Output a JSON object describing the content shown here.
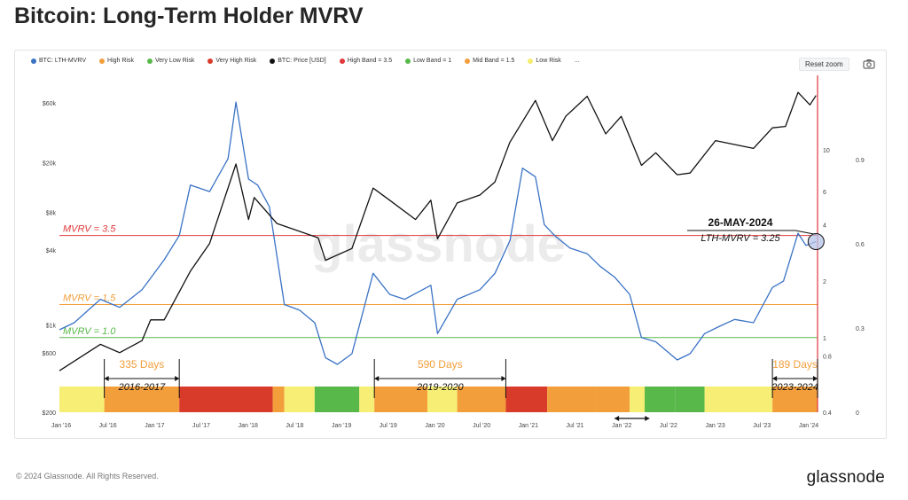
{
  "title": "Bitcoin: Long-Term Holder MVRV",
  "legend": [
    {
      "label": "BTC: LTH-MVRV",
      "color": "#3a72c5"
    },
    {
      "label": "High Risk",
      "color": "#f29e3b"
    },
    {
      "label": "Very Low Risk",
      "color": "#58b84a"
    },
    {
      "label": "Very High Risk",
      "color": "#d93b2b"
    },
    {
      "label": "BTC: Price [USD]",
      "color": "#111111"
    },
    {
      "label": "High Band = 3.5",
      "color": "#e0383b"
    },
    {
      "label": "Low Band = 1",
      "color": "#58b84a"
    },
    {
      "label": "Mid Band = 1.5",
      "color": "#f29e3b"
    },
    {
      "label": "Low Risk",
      "color": "#f5ec6e"
    }
  ],
  "legend_more": "...",
  "reset_zoom_label": "Reset zoom",
  "watermark": "glassnode",
  "copyright": "© 2024 Glassnode. All Rights Reserved.",
  "brand": "glassnode",
  "chart_data": {
    "type": "line",
    "x_ticks": [
      "Jan '16",
      "Jul '16",
      "Jan '17",
      "Jul '17",
      "Jan '18",
      "Jul '18",
      "Jan '19",
      "Jul '19",
      "Jan '20",
      "Jul '20",
      "Jan '21",
      "Jul '21",
      "Jan '22",
      "Jul '22",
      "Jan '23",
      "Jul '23",
      "Jan '24"
    ],
    "x_range": [
      "2016-01-01",
      "2024-06-01"
    ],
    "price_axis": {
      "scale": "log",
      "range": [
        200,
        100000
      ],
      "ticks": [
        "$200",
        "$600",
        "$1k",
        "$4k",
        "$8k",
        "$20k",
        "$60k"
      ],
      "tick_values": [
        200,
        600,
        1000,
        4000,
        8000,
        20000,
        60000
      ]
    },
    "mvrv_axis": {
      "scale": "log",
      "range": [
        0.4,
        25
      ],
      "ticks": [
        "0.4",
        "0.8",
        "1",
        "2",
        "4",
        "6",
        "10"
      ],
      "tick_values": [
        0.4,
        0.8,
        1,
        2,
        4,
        6,
        10
      ]
    },
    "right_axis": {
      "ticks": [
        "0",
        "0.3",
        "0.6",
        "0.9"
      ],
      "tick_values": [
        0,
        0.3,
        0.6,
        0.9
      ],
      "range": [
        0,
        1.2
      ]
    },
    "bands": [
      {
        "label": "MVRV = 3.5",
        "value": 3.5,
        "color": "#e0383b"
      },
      {
        "label": "MVRV = 1.5",
        "value": 1.5,
        "color": "#f29e3b"
      },
      {
        "label": "MVRV = 1.0",
        "value": 1.0,
        "color": "#58b84a"
      }
    ],
    "series": [
      {
        "name": "BTC: LTH-MVRV",
        "color": "#3a72c5",
        "axis": "mvrv",
        "points": [
          [
            "2016-01-01",
            1.1
          ],
          [
            "2016-03-01",
            1.2
          ],
          [
            "2016-06-15",
            1.6
          ],
          [
            "2016-09-01",
            1.45
          ],
          [
            "2016-12-01",
            1.8
          ],
          [
            "2017-03-01",
            2.6
          ],
          [
            "2017-05-01",
            3.5
          ],
          [
            "2017-06-15",
            6.5
          ],
          [
            "2017-09-01",
            6.0
          ],
          [
            "2017-11-15",
            9.0
          ],
          [
            "2017-12-17",
            18.0
          ],
          [
            "2018-02-06",
            7.0
          ],
          [
            "2018-03-15",
            6.5
          ],
          [
            "2018-05-01",
            5.0
          ],
          [
            "2018-07-01",
            1.5
          ],
          [
            "2018-09-01",
            1.4
          ],
          [
            "2018-11-01",
            1.2
          ],
          [
            "2018-12-15",
            0.78
          ],
          [
            "2019-02-01",
            0.72
          ],
          [
            "2019-04-01",
            0.82
          ],
          [
            "2019-06-26",
            2.2
          ],
          [
            "2019-09-01",
            1.7
          ],
          [
            "2019-11-01",
            1.6
          ],
          [
            "2020-02-15",
            1.9
          ],
          [
            "2020-03-13",
            1.05
          ],
          [
            "2020-06-01",
            1.6
          ],
          [
            "2020-09-01",
            1.8
          ],
          [
            "2020-11-01",
            2.2
          ],
          [
            "2021-01-01",
            3.3
          ],
          [
            "2021-02-21",
            8.0
          ],
          [
            "2021-04-14",
            7.2
          ],
          [
            "2021-05-20",
            4.0
          ],
          [
            "2021-07-01",
            3.5
          ],
          [
            "2021-09-01",
            3.0
          ],
          [
            "2021-11-10",
            2.8
          ],
          [
            "2022-01-01",
            2.4
          ],
          [
            "2022-03-01",
            2.1
          ],
          [
            "2022-05-01",
            1.7
          ],
          [
            "2022-06-18",
            1.0
          ],
          [
            "2022-08-15",
            0.95
          ],
          [
            "2022-11-10",
            0.76
          ],
          [
            "2023-01-01",
            0.82
          ],
          [
            "2023-03-01",
            1.05
          ],
          [
            "2023-05-01",
            1.15
          ],
          [
            "2023-07-01",
            1.25
          ],
          [
            "2023-09-15",
            1.2
          ],
          [
            "2023-12-01",
            1.85
          ],
          [
            "2024-01-15",
            2.0
          ],
          [
            "2024-03-14",
            3.6
          ],
          [
            "2024-04-15",
            3.1
          ],
          [
            "2024-05-26",
            3.25
          ]
        ]
      },
      {
        "name": "BTC: Price [USD]",
        "color": "#111111",
        "axis": "price",
        "points": [
          [
            "2016-01-01",
            430
          ],
          [
            "2016-06-15",
            700
          ],
          [
            "2016-09-01",
            600
          ],
          [
            "2016-12-01",
            750
          ],
          [
            "2017-01-05",
            1100
          ],
          [
            "2017-03-01",
            1100
          ],
          [
            "2017-06-15",
            2700
          ],
          [
            "2017-09-01",
            4500
          ],
          [
            "2017-12-17",
            19500
          ],
          [
            "2018-02-06",
            7000
          ],
          [
            "2018-03-01",
            10500
          ],
          [
            "2018-06-01",
            6500
          ],
          [
            "2018-11-15",
            5000
          ],
          [
            "2018-12-15",
            3300
          ],
          [
            "2019-04-01",
            4100
          ],
          [
            "2019-06-26",
            12500
          ],
          [
            "2019-09-01",
            10000
          ],
          [
            "2019-12-15",
            7000
          ],
          [
            "2020-02-15",
            10000
          ],
          [
            "2020-03-13",
            4900
          ],
          [
            "2020-06-01",
            9500
          ],
          [
            "2020-09-01",
            11000
          ],
          [
            "2020-11-01",
            14000
          ],
          [
            "2020-12-31",
            29000
          ],
          [
            "2021-04-14",
            63000
          ],
          [
            "2021-06-22",
            30000
          ],
          [
            "2021-08-15",
            47000
          ],
          [
            "2021-11-10",
            68000
          ],
          [
            "2022-01-24",
            34000
          ],
          [
            "2022-03-28",
            47000
          ],
          [
            "2022-06-18",
            19000
          ],
          [
            "2022-08-15",
            24000
          ],
          [
            "2022-11-10",
            16000
          ],
          [
            "2023-01-01",
            16500
          ],
          [
            "2023-04-14",
            30000
          ],
          [
            "2023-09-15",
            26000
          ],
          [
            "2023-12-01",
            38000
          ],
          [
            "2024-01-23",
            39000
          ],
          [
            "2024-03-14",
            73000
          ],
          [
            "2024-05-01",
            58000
          ],
          [
            "2024-05-26",
            69000
          ]
        ]
      }
    ],
    "risk_bar": [
      {
        "start": "2016-01-01",
        "end": "2016-07-01",
        "color": "#f7ee75"
      },
      {
        "start": "2016-07-01",
        "end": "2017-05-01",
        "color": "#f29e3b"
      },
      {
        "start": "2017-05-01",
        "end": "2018-05-15",
        "color": "#d93b2b"
      },
      {
        "start": "2018-05-15",
        "end": "2018-07-01",
        "color": "#f29e3b"
      },
      {
        "start": "2018-07-01",
        "end": "2018-11-01",
        "color": "#f7ee75"
      },
      {
        "start": "2018-11-01",
        "end": "2019-05-01",
        "color": "#58b84a"
      },
      {
        "start": "2019-05-01",
        "end": "2019-07-01",
        "color": "#f7ee75"
      },
      {
        "start": "2019-07-01",
        "end": "2020-02-01",
        "color": "#f29e3b"
      },
      {
        "start": "2020-02-01",
        "end": "2020-06-01",
        "color": "#f7ee75"
      },
      {
        "start": "2020-06-01",
        "end": "2020-12-15",
        "color": "#f29e3b"
      },
      {
        "start": "2020-12-15",
        "end": "2021-06-01",
        "color": "#d93b2b"
      },
      {
        "start": "2021-06-01",
        "end": "2021-12-15",
        "color": "#f29e3b"
      },
      {
        "start": "2021-12-15",
        "end": "2022-05-01",
        "color": "#f29e3b"
      },
      {
        "start": "2022-05-01",
        "end": "2022-07-01",
        "color": "#f7ee75"
      },
      {
        "start": "2022-07-01",
        "end": "2022-11-01",
        "color": "#58b84a"
      },
      {
        "start": "2022-11-01",
        "end": "2023-03-01",
        "color": "#58b84a"
      },
      {
        "start": "2023-03-01",
        "end": "2023-12-01",
        "color": "#f7ee75"
      },
      {
        "start": "2023-12-01",
        "end": "2024-06-01",
        "color": "#f29e3b"
      }
    ],
    "annotations": [
      {
        "text": "335 Days",
        "start": "2016-07-01",
        "end": "2017-05-01",
        "color": "#f29e3b"
      },
      {
        "text": "2016-2017",
        "start": "2016-07-01",
        "end": "2017-05-01",
        "color": "#111111"
      },
      {
        "text": "590 Days",
        "start": "2019-07-01",
        "end": "2020-12-15",
        "color": "#f29e3b"
      },
      {
        "text": "2019-2020",
        "start": "2019-07-01",
        "end": "2020-12-15",
        "color": "#111111"
      },
      {
        "text": "189 Days",
        "start": "2023-12-01",
        "end": "2024-06-01",
        "color": "#f29e3b"
      },
      {
        "text": "2023-2024",
        "start": "2023-12-01",
        "end": "2024-06-01",
        "color": "#111111"
      }
    ],
    "bottom_arrow": {
      "start": "2022-03-01",
      "end": "2022-07-20"
    },
    "callout": {
      "date": "26-MAY-2024",
      "text": "LTH-MVRV = 3.25",
      "x": "2024-05-26",
      "value": 3.25
    }
  }
}
